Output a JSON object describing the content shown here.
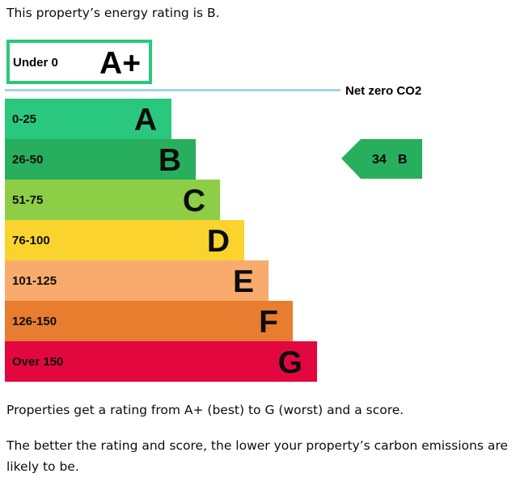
{
  "intro_text": "This property’s energy rating is B.",
  "chart_data": {
    "type": "bar",
    "categories": [
      "A",
      "B",
      "C",
      "D",
      "E",
      "F",
      "G"
    ],
    "ranges": [
      "0-25",
      "26-50",
      "51-75",
      "76-100",
      "101-125",
      "126-150",
      "Over 150"
    ],
    "colors": [
      "#2ac87e",
      "#27af5e",
      "#8dce46",
      "#fad32e",
      "#f9ab6d",
      "#e87d2f",
      "#e3073f"
    ],
    "top_band": {
      "letter": "A+",
      "range": "Under 0",
      "color": "#2ac87e"
    },
    "net_zero_label": "Net zero CO2",
    "net_zero_line_color": "#a8d0e6",
    "current_rating": {
      "score": "34",
      "letter": "B",
      "color": "#27af5e"
    }
  },
  "paragraphs": [
    "Properties get a rating from A+ (best) to G (worst) and a score.",
    "The better the rating and score, the lower your property’s carbon emissions are likely to be."
  ]
}
